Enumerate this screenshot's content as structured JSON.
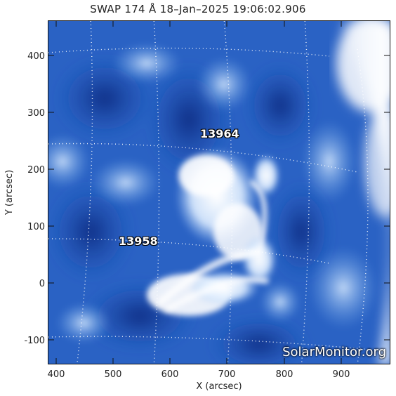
{
  "title": "SWAP 174 Å 18–Jan–2025 19:06:02.906",
  "x_axis": {
    "label": "X (arcsec)",
    "ticks": [
      "400",
      "500",
      "600",
      "700",
      "800",
      "900"
    ]
  },
  "y_axis": {
    "label": "Y (arcsec)",
    "ticks": [
      "400",
      "300",
      "200",
      "100",
      "0",
      "-100"
    ]
  },
  "active_regions": [
    {
      "number": "13964"
    },
    {
      "number": "13958"
    }
  ],
  "watermark": "SolarMonitor.org",
  "colors": {
    "deep": "#0a2f8a",
    "mid": "#2f6fd0",
    "light": "#8fbaf0",
    "bright": "#ffffff"
  }
}
